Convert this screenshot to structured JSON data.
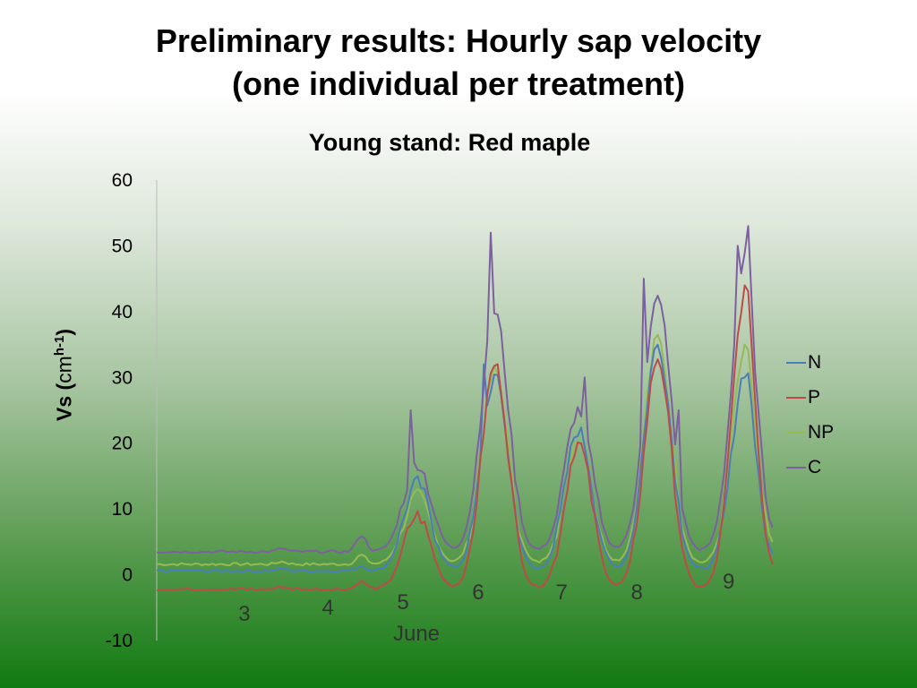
{
  "slide": {
    "title_line1": "Preliminary results: Hourly sap velocity",
    "title_line2": "(one individual per treatment)"
  },
  "chart_data": {
    "type": "line",
    "title": "Young stand: Red maple",
    "ylabel_main": "Vs (",
    "ylabel_unit": "cm",
    "ylabel_sup": "h-1",
    "ylabel_close": ")",
    "xlabel": "June",
    "ylim": [
      -10,
      60
    ],
    "yticks": [
      "60",
      "50",
      "40",
      "30",
      "20",
      "10",
      "0",
      "-10"
    ],
    "grid": false,
    "legend_position": "right",
    "day_labels": [
      {
        "label": "3",
        "day": 3.2
      },
      {
        "label": "4",
        "day": 4.2
      },
      {
        "label": "5",
        "day": 5.1
      },
      {
        "label": "6",
        "day": 6.0
      },
      {
        "label": "7",
        "day": 7.0
      },
      {
        "label": "8",
        "day": 7.9
      },
      {
        "label": "9",
        "day": 9.0
      }
    ],
    "x_range_days": [
      2.0,
      9.4
    ],
    "series": [
      {
        "name": "N",
        "color": "#4a7ebb",
        "base": 0.6,
        "peaks": [
          0.9,
          1.3,
          14,
          30,
          22,
          35,
          31
        ],
        "final": 2
      },
      {
        "name": "P",
        "color": "#be4b48",
        "base": -2.2,
        "peaks": [
          -1.8,
          -1.0,
          9,
          32,
          20,
          33,
          43
        ],
        "final": 0.2
      },
      {
        "name": "NP",
        "color": "#98b954",
        "base": 1.6,
        "peaks": [
          2.0,
          3.0,
          12,
          31,
          21,
          36,
          34
        ],
        "final": 4
      },
      {
        "name": "C",
        "color": "#7d60a0",
        "base": 3.5,
        "peaks": [
          4.0,
          6.0,
          17,
          40,
          25,
          42,
          48
        ],
        "final": 6
      }
    ],
    "spikes": [
      {
        "series": "C",
        "day": 5.05,
        "value": 25
      },
      {
        "series": "C",
        "day": 6.01,
        "value": 52
      },
      {
        "series": "C",
        "day": 7.12,
        "value": 30
      },
      {
        "series": "C",
        "day": 7.85,
        "value": 45
      },
      {
        "series": "C",
        "day": 8.05,
        "value": 41
      },
      {
        "series": "C",
        "day": 8.25,
        "value": 25
      },
      {
        "series": "C",
        "day": 8.95,
        "value": 50
      },
      {
        "series": "C",
        "day": 9.1,
        "value": 53
      },
      {
        "series": "N",
        "day": 5.9,
        "value": 32
      },
      {
        "series": "P",
        "day": 9.05,
        "value": 44
      }
    ],
    "days_start": 2.0,
    "days_end": 9.4
  }
}
